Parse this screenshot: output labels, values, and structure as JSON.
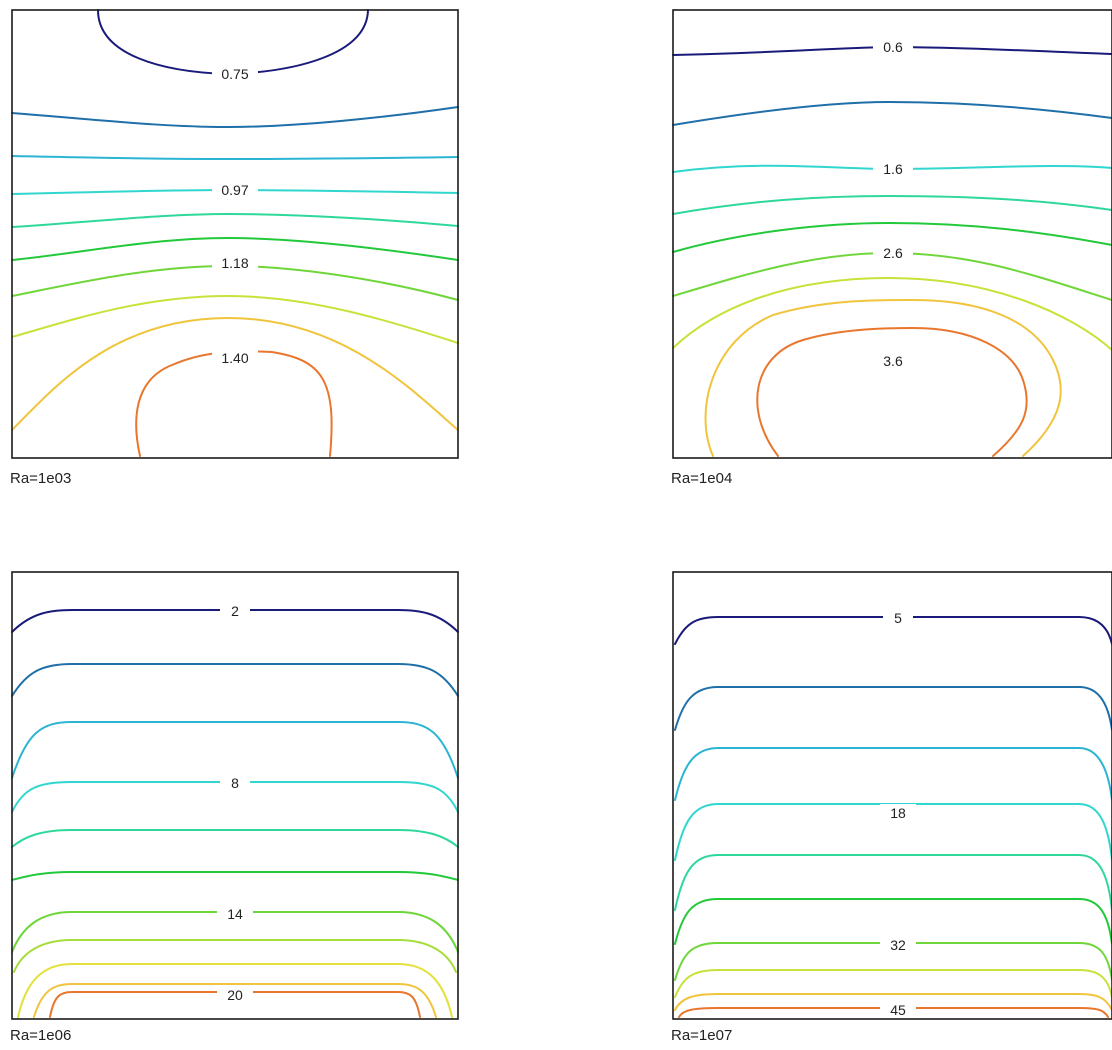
{
  "chart_data": [
    {
      "type": "contour",
      "title": "Ra=1e03",
      "levels": [
        {
          "color": "#1a1a7a",
          "label": "0.75"
        },
        {
          "color": "#1f6fa8",
          "label": ""
        },
        {
          "color": "#2bb5d3",
          "label": ""
        },
        {
          "color": "#30d6cf",
          "label": "0.97"
        },
        {
          "color": "#2ed89a",
          "label": ""
        },
        {
          "color": "#22c93a",
          "label": "1.18"
        },
        {
          "color": "#6fd63a",
          "label": ""
        },
        {
          "color": "#c7e23b",
          "label": ""
        },
        {
          "color": "#f0c43c",
          "label": ""
        },
        {
          "color": "#e8772d",
          "label": "1.40"
        }
      ]
    },
    {
      "type": "contour",
      "title": "Ra=1e04",
      "levels": [
        {
          "color": "#1a1a7a",
          "label": "0.6"
        },
        {
          "color": "#1f6fa8",
          "label": ""
        },
        {
          "color": "#30d6cf",
          "label": "1.6"
        },
        {
          "color": "#2ed89a",
          "label": ""
        },
        {
          "color": "#22c93a",
          "label": "2.6"
        },
        {
          "color": "#6fd63a",
          "label": ""
        },
        {
          "color": "#c7e23b",
          "label": ""
        },
        {
          "color": "#f0c43c",
          "label": ""
        },
        {
          "color": "#e8772d",
          "label": "3.6"
        }
      ]
    },
    {
      "type": "contour",
      "title": "Ra=1e06",
      "levels": [
        {
          "color": "#1a1a7a",
          "label": "2"
        },
        {
          "color": "#1f6fa8",
          "label": ""
        },
        {
          "color": "#2bb5d3",
          "label": ""
        },
        {
          "color": "#30d6cf",
          "label": "8"
        },
        {
          "color": "#2ed89a",
          "label": ""
        },
        {
          "color": "#22c93a",
          "label": ""
        },
        {
          "color": "#6fd63a",
          "label": "14"
        },
        {
          "color": "#a6dd3a",
          "label": ""
        },
        {
          "color": "#e3e13b",
          "label": ""
        },
        {
          "color": "#f0c43c",
          "label": ""
        },
        {
          "color": "#e8772d",
          "label": "20"
        }
      ]
    },
    {
      "type": "contour",
      "title": "Ra=1e07",
      "levels": [
        {
          "color": "#1a1a7a",
          "label": "5"
        },
        {
          "color": "#1f6fa8",
          "label": ""
        },
        {
          "color": "#2bb5d3",
          "label": ""
        },
        {
          "color": "#30d6cf",
          "label": "18"
        },
        {
          "color": "#2ed89a",
          "label": ""
        },
        {
          "color": "#22c93a",
          "label": ""
        },
        {
          "color": "#6fd63a",
          "label": "32"
        },
        {
          "color": "#c7e23b",
          "label": ""
        },
        {
          "color": "#f0c43c",
          "label": ""
        },
        {
          "color": "#e8772d",
          "label": "45"
        }
      ]
    }
  ]
}
